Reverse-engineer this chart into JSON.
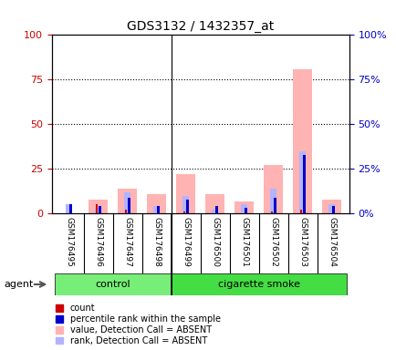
{
  "title": "GDS3132 / 1432357_at",
  "samples": [
    "GSM176495",
    "GSM176496",
    "GSM176497",
    "GSM176498",
    "GSM176499",
    "GSM176500",
    "GSM176501",
    "GSM176502",
    "GSM176503",
    "GSM176504"
  ],
  "groups": [
    "control",
    "control",
    "control",
    "control",
    "cigarette smoke",
    "cigarette smoke",
    "cigarette smoke",
    "cigarette smoke",
    "cigarette smoke",
    "cigarette smoke"
  ],
  "value_absent": [
    0,
    8,
    14,
    11,
    22,
    11,
    7,
    27,
    81,
    8
  ],
  "rank_absent": [
    5,
    3,
    12,
    4,
    10,
    2,
    5,
    14,
    35,
    5
  ],
  "count": [
    0,
    5,
    2,
    0,
    1,
    0,
    0,
    1,
    2,
    0
  ],
  "percentile": [
    5,
    4,
    9,
    4,
    8,
    4,
    3,
    9,
    33,
    4
  ],
  "ylim_left": [
    0,
    100
  ],
  "ylim_right": [
    0,
    100
  ],
  "yticks_left": [
    0,
    25,
    50,
    75,
    100
  ],
  "yticks_right": [
    0,
    25,
    50,
    75,
    100
  ],
  "left_tick_color": "#cc0000",
  "right_tick_color": "#0000cc",
  "color_value_absent": "#ffb3b3",
  "color_rank_absent": "#b3b3ff",
  "color_count": "#cc0000",
  "color_percentile": "#0000cc",
  "group_colors": {
    "control": "#77ee77",
    "cigarette smoke": "#44dd44"
  },
  "bar_width": 0.65,
  "agent_label": "agent",
  "legend_items": [
    {
      "label": "count",
      "color": "#cc0000"
    },
    {
      "label": "percentile rank within the sample",
      "color": "#0000cc"
    },
    {
      "label": "value, Detection Call = ABSENT",
      "color": "#ffb3b3"
    },
    {
      "label": "rank, Detection Call = ABSENT",
      "color": "#b3b3ff"
    }
  ]
}
